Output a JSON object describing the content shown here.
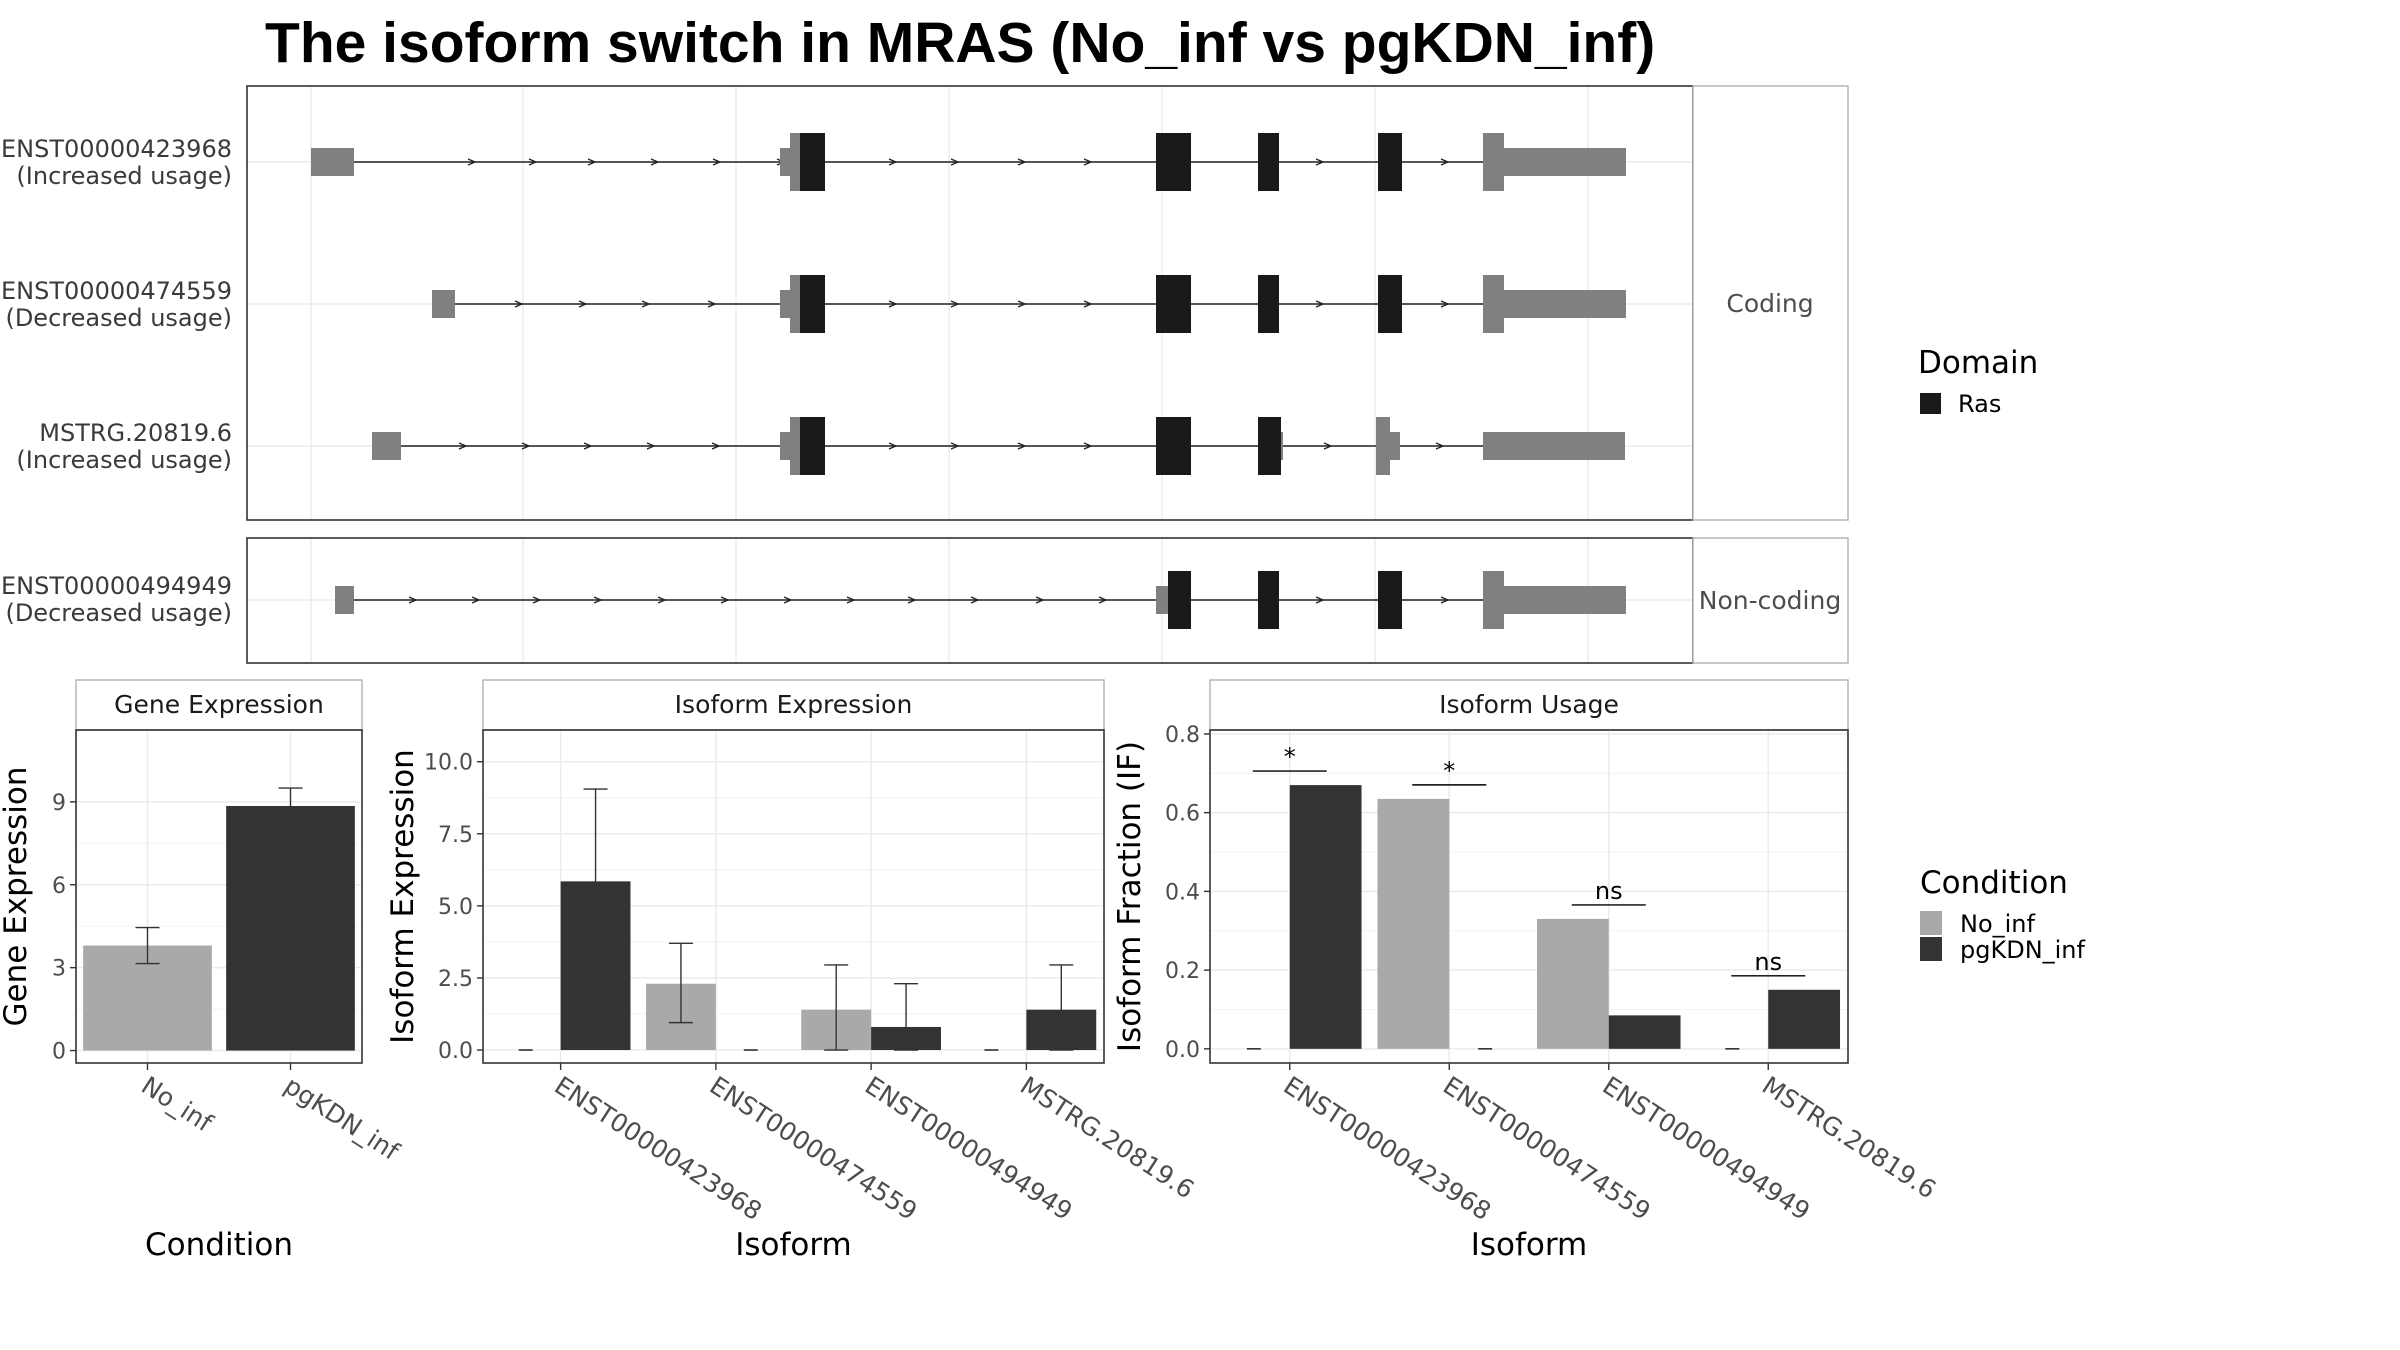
{
  "title": "The isoform switch in MRAS (No_inf vs pgKDN_inf)",
  "colors": {
    "utr": "#808080",
    "domain_ras": "#1a1a1a",
    "no_inf": "#a9a9a9",
    "pgkdn_inf": "#333333",
    "panel_border": "#333333",
    "strip_border": "#b0b0b0",
    "grid": "#ebebeb"
  },
  "structure": {
    "coding_label": "Coding",
    "noncoding_label": "Non-coding",
    "coding_transcripts": [
      {
        "id": "ENST00000423968",
        "note": "(Increased usage)"
      },
      {
        "id": "ENST00000474559",
        "note": "(Decreased usage)"
      },
      {
        "id": "MSTRG.20819.6",
        "note": "(Increased usage)"
      }
    ],
    "noncoding_transcripts": [
      {
        "id": "ENST00000494949",
        "note": "(Decreased usage)"
      }
    ]
  },
  "legend_domain": {
    "title": "Domain",
    "items": [
      {
        "label": "Ras",
        "color": "#1a1a1a"
      }
    ]
  },
  "legend_condition": {
    "title": "Condition",
    "items": [
      {
        "label": "No_inf",
        "color": "#a9a9a9"
      },
      {
        "label": "pgKDN_inf",
        "color": "#333333"
      }
    ]
  },
  "chart_data": [
    {
      "type": "bar",
      "title": "Gene Expression",
      "xlabel": "Condition",
      "ylabel": "Gene Expression",
      "categories": [
        "No_inf",
        "pgKDN_inf"
      ],
      "values": [
        3.8,
        8.85
      ],
      "errors": [
        [
          3.15,
          4.45
        ],
        [
          8.2,
          9.5
        ]
      ],
      "ylim": [
        -0.45,
        11.6
      ],
      "yticks": [
        0,
        3,
        6,
        9
      ]
    },
    {
      "type": "bar",
      "title": "Isoform Expression",
      "xlabel": "Isoform",
      "ylabel": "Isoform Expression",
      "categories": [
        "ENST00000423968",
        "ENST00000474559",
        "ENST00000494949",
        "MSTRG.20819.6"
      ],
      "series": [
        {
          "name": "No_inf",
          "values": [
            0.0,
            2.3,
            1.4,
            0.0
          ],
          "errors": [
            null,
            [
              0.95,
              3.7
            ],
            [
              0.0,
              2.95
            ],
            null
          ]
        },
        {
          "name": "pgKDN_inf",
          "values": [
            5.85,
            0.0,
            0.8,
            1.4
          ],
          "errors": [
            [
              2.7,
              9.05
            ],
            null,
            [
              0.0,
              2.3
            ],
            [
              0.0,
              2.95
            ]
          ]
        }
      ],
      "ylim": [
        -0.45,
        11.1
      ],
      "yticks": [
        0.0,
        2.5,
        5.0,
        7.5,
        10.0
      ]
    },
    {
      "type": "bar",
      "title": "Isoform Usage",
      "xlabel": "Isoform",
      "ylabel": "Isoform Fraction (IF)",
      "categories": [
        "ENST00000423968",
        "ENST00000474559",
        "ENST00000494949",
        "MSTRG.20819.6"
      ],
      "series": [
        {
          "name": "No_inf",
          "values": [
            0.0,
            0.635,
            0.33,
            0.0
          ]
        },
        {
          "name": "pgKDN_inf",
          "values": [
            0.67,
            0.0,
            0.085,
            0.15
          ]
        }
      ],
      "significance": [
        "*",
        "*",
        "ns",
        "ns"
      ],
      "ylim": [
        -0.036,
        0.81
      ],
      "yticks": [
        0.0,
        0.2,
        0.4,
        0.6,
        0.8
      ]
    }
  ]
}
